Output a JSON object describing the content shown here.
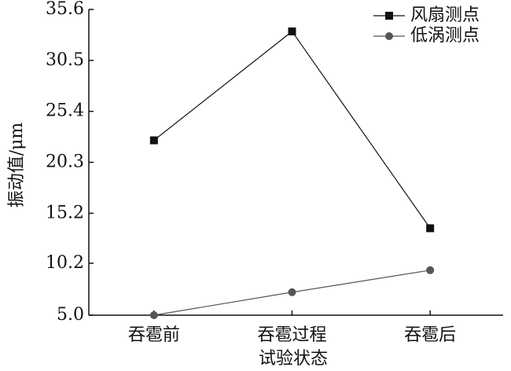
{
  "chart_data": {
    "type": "line",
    "x_label": "试验状态",
    "y_label": "振动值/μm",
    "categories": [
      "吞雹前",
      "吞雹过程",
      "吞雹后"
    ],
    "series": [
      {
        "name": "风扇测点",
        "color": "#111111",
        "marker": "square",
        "values": [
          22.5,
          33.4,
          13.7
        ]
      },
      {
        "name": "低涡测点",
        "color": "#555555",
        "marker": "circle",
        "values": [
          5.0,
          7.3,
          9.5
        ]
      }
    ],
    "ylim": [
      5.0,
      35.6
    ],
    "yticks": [
      {
        "value": 5,
        "label": "5.0"
      },
      10.2,
      15.2,
      20.3,
      25.4,
      30.5,
      35.6
    ],
    "legend": "upper right"
  }
}
